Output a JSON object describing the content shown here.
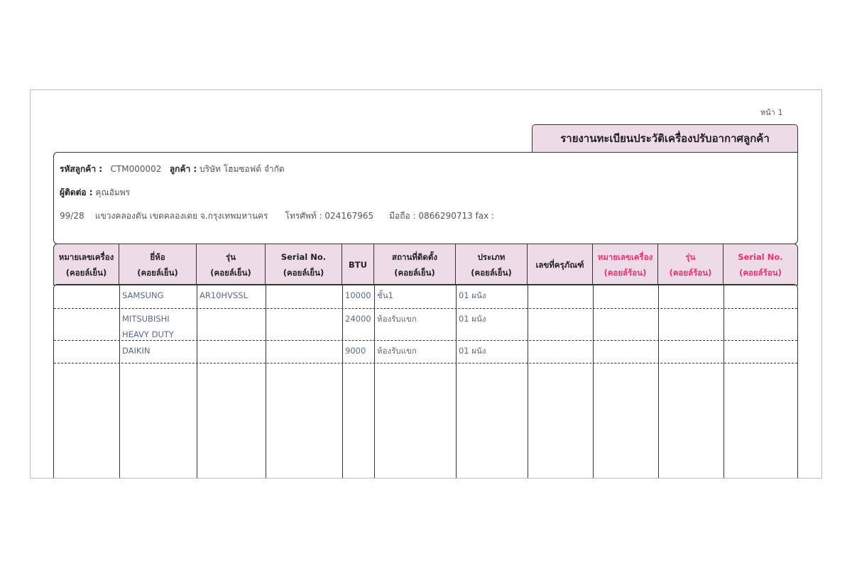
{
  "page_label": "หน้า 1",
  "title": "รายงานทะเบียนประวัติเครื่องปรับอากาศลูกค้า",
  "customer": {
    "code_label": "รหัสลูกค้า :",
    "code": "CTM000002",
    "name_label": "ลูกค้า :",
    "name": "บริษัท โฮมซอฟต์ จำกัด",
    "contact_label": "ผู้ติดต่อ :",
    "contact": "คุณอัมพร",
    "address": "99/28    แขวงคลองตัน เขตคลองเตย จ.กรุงเทพมหานคร",
    "phone": "โทรศัพท์ : 024167965",
    "mobile": "มือถือ : 0866290713 fax :"
  },
  "columns": [
    {
      "l1": "หมายเลขเครื่อง",
      "l2": "(คอยล์เย็น)",
      "red": false
    },
    {
      "l1": "ยี่ห้อ",
      "l2": "(คอยล์เย็น)",
      "red": false
    },
    {
      "l1": "รุ่น",
      "l2": "(คอยล์เย็น)",
      "red": false
    },
    {
      "l1": "Serial No.",
      "l2": "(คอยล์เย็น)",
      "red": false
    },
    {
      "l1": "BTU",
      "l2": "",
      "red": false
    },
    {
      "l1": "สถานที่ติดตั้ง",
      "l2": "(คอยล์เย็น)",
      "red": false
    },
    {
      "l1": "ประเภท",
      "l2": "(คอยล์เย็น)",
      "red": false
    },
    {
      "l1": "เลขที่ครุภัณฑ์",
      "l2": "",
      "red": false
    },
    {
      "l1": "หมายเลขเครื่อง",
      "l2": "(คอยล์ร้อน)",
      "red": true
    },
    {
      "l1": "รุ่น",
      "l2": "(คอยล์ร้อน)",
      "red": true
    },
    {
      "l1": "Serial No.",
      "l2": "(คอยล์ร้อน)",
      "red": true
    }
  ],
  "rows": [
    {
      "brand": [
        "SAMSUNG"
      ],
      "model": "AR10HVSSL",
      "btu": "10000",
      "location": "ชั้น1",
      "type": "01 ผนัง"
    },
    {
      "brand": [
        "MITSUBISHI",
        "HEAVY DUTY"
      ],
      "model": "",
      "btu": "24000",
      "location": "ห้องรับแขก",
      "type": "01 ผนัง"
    },
    {
      "brand": [
        "DAIKIN"
      ],
      "model": "",
      "btu": "9000",
      "location": "ห้องรับแขก",
      "type": "01 ผนัง"
    }
  ],
  "colors": {
    "header_bg": "#eedbe8",
    "hot_coil_text": "#e8336e",
    "body_text": "#5a6a85"
  }
}
